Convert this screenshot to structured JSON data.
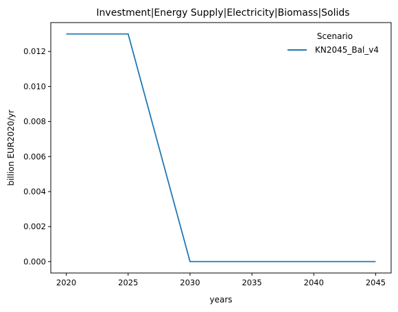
{
  "chart_data": {
    "type": "line",
    "title": "Investment|Energy Supply|Electricity|Biomass|Solids",
    "xlabel": "years",
    "ylabel": "billion EUR2020/yr",
    "x": [
      2020,
      2025,
      2030,
      2035,
      2040,
      2045
    ],
    "xlim": [
      2018.75,
      2046.25
    ],
    "ylim": [
      -0.00065,
      0.01365
    ],
    "xticks": [
      2020,
      2025,
      2030,
      2035,
      2040,
      2045
    ],
    "yticks": [
      0.0,
      0.002,
      0.004,
      0.006,
      0.008,
      0.01,
      0.012
    ],
    "ytick_labels": [
      "0.000",
      "0.002",
      "0.004",
      "0.006",
      "0.008",
      "0.010",
      "0.012"
    ],
    "legend": {
      "title": "Scenario",
      "placement": "top-right"
    },
    "grid": false,
    "series": [
      {
        "name": "KN2045_Bal_v4",
        "color": "#1f77b4",
        "values": [
          0.013,
          0.013,
          0.0,
          0.0,
          0.0,
          0.0
        ]
      }
    ]
  }
}
